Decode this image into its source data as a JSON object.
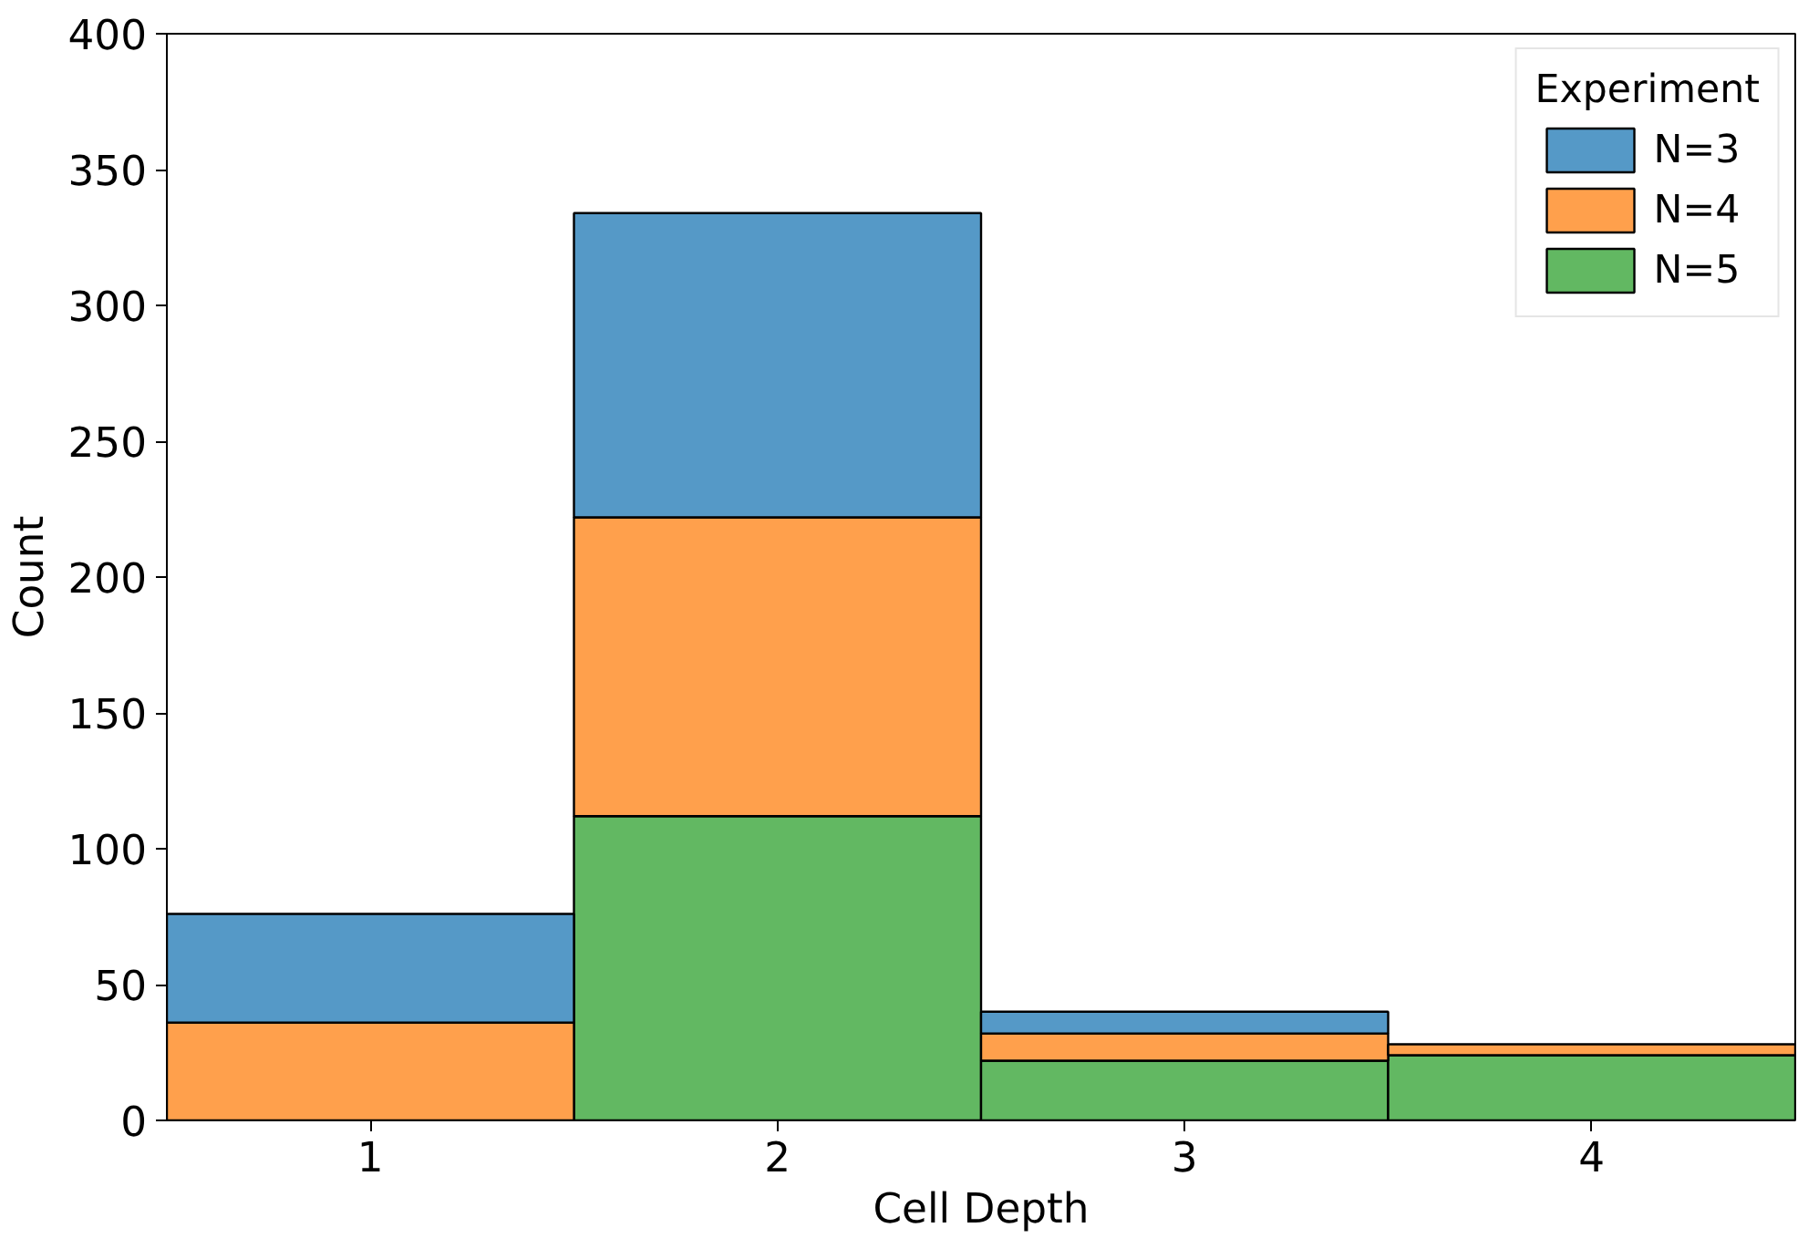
{
  "chart_data": {
    "type": "bar",
    "stacked": true,
    "xlabel": "Cell Depth",
    "ylabel": "Count",
    "legend_title": "Experiment",
    "legend": "top right",
    "grid": false,
    "categories": [
      "1",
      "2",
      "3",
      "4"
    ],
    "ylim": [
      0,
      400
    ],
    "yticks": [
      0,
      50,
      100,
      150,
      200,
      250,
      300,
      350,
      400
    ],
    "series": [
      {
        "name": "N=5",
        "color": "#62b862",
        "values": [
          null,
          112,
          22,
          24
        ]
      },
      {
        "name": "N=4",
        "color": "#ffa04c",
        "values": [
          36,
          110,
          10,
          4
        ]
      },
      {
        "name": "N=3",
        "color": "#5599c7",
        "values": [
          40,
          112,
          8,
          null
        ]
      }
    ]
  }
}
